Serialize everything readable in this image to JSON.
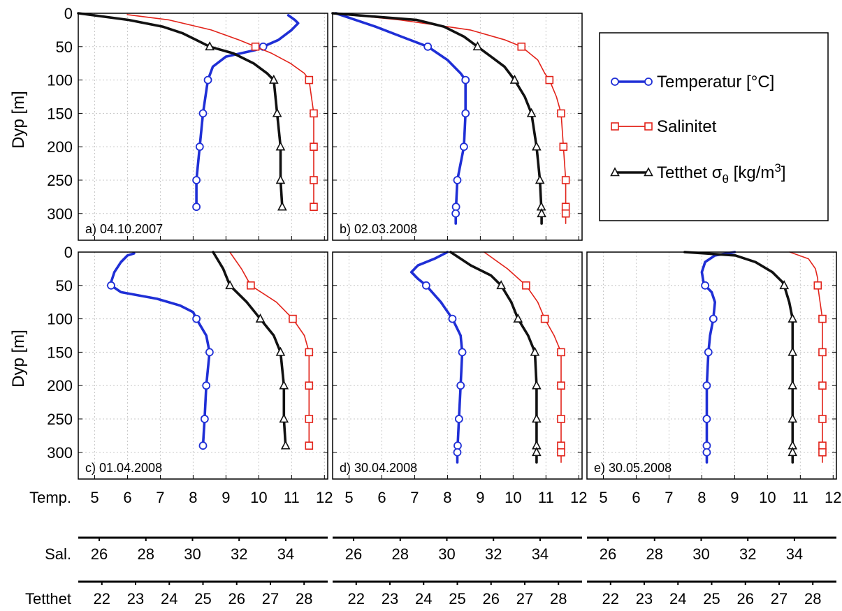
{
  "chart_data": {
    "type": "line",
    "ylabel": "Dyp [m]",
    "y_axis": {
      "ylim": [
        0,
        340
      ],
      "reversed": true,
      "ticks": [
        0,
        50,
        100,
        150,
        200,
        250,
        300
      ]
    },
    "x_axes": [
      {
        "label": "Temp.",
        "range": [
          4.5,
          12.1
        ],
        "ticks": [
          5,
          6,
          7,
          8,
          9,
          10,
          11,
          12
        ]
      },
      {
        "label": "Sal.",
        "range": [
          25.1,
          35.8
        ],
        "ticks": [
          26,
          28,
          30,
          32,
          34
        ]
      },
      {
        "label": "Tetthet",
        "range": [
          21.3,
          28.7
        ],
        "ticks": [
          22,
          23,
          24,
          25,
          26,
          27,
          28
        ]
      }
    ],
    "grid": true,
    "legend": {
      "position": "top-right",
      "entries": [
        {
          "name": "Temperatur [°C]",
          "color": "#1f2fd6",
          "marker": "circle"
        },
        {
          "name": "Salinitet",
          "color": "#e2231a",
          "marker": "square"
        },
        {
          "name": "Tetthet σθ [kg/m3]",
          "color": "#111111",
          "marker": "triangle"
        }
      ]
    },
    "panels": [
      {
        "label": "a) 04.10.2007",
        "temperature": {
          "depth": [
            3,
            10,
            15,
            25,
            40,
            55,
            65,
            80,
            100,
            150,
            200,
            250,
            290
          ],
          "values": [
            10.9,
            11.1,
            11.2,
            11.0,
            10.6,
            9.9,
            9.0,
            8.6,
            8.45,
            8.3,
            8.2,
            8.1,
            8.1
          ]
        },
        "salinity": {
          "depth": [
            2,
            10,
            25,
            40,
            50,
            60,
            75,
            90,
            100,
            150,
            200,
            250,
            290
          ],
          "values": [
            27.2,
            29.0,
            30.8,
            32.0,
            32.7,
            33.4,
            34.2,
            34.8,
            35.0,
            35.2,
            35.2,
            35.2,
            35.2
          ]
        },
        "density": {
          "depth": [
            0,
            10,
            20,
            30,
            40,
            50,
            60,
            75,
            90,
            100,
            150,
            200,
            250,
            290
          ],
          "values": [
            21.3,
            22.8,
            23.8,
            24.4,
            24.8,
            25.2,
            25.9,
            26.5,
            26.9,
            27.1,
            27.2,
            27.3,
            27.3,
            27.35
          ]
        }
      },
      {
        "label": "b) 02.03.2008",
        "temperature": {
          "depth": [
            0,
            10,
            20,
            35,
            50,
            70,
            90,
            100,
            150,
            200,
            250,
            300,
            315
          ],
          "values": [
            4.6,
            5.2,
            5.8,
            6.6,
            7.4,
            8.0,
            8.4,
            8.55,
            8.55,
            8.5,
            8.3,
            8.25,
            8.25
          ]
        },
        "salinity": {
          "depth": [
            0,
            10,
            25,
            40,
            50,
            70,
            90,
            100,
            125,
            150,
            200,
            250,
            300,
            315
          ],
          "values": [
            25.2,
            28.0,
            31.0,
            32.5,
            33.2,
            33.9,
            34.2,
            34.4,
            34.7,
            34.9,
            35.0,
            35.1,
            35.1,
            35.1
          ]
        },
        "density": {
          "depth": [
            0,
            10,
            20,
            35,
            50,
            65,
            80,
            100,
            125,
            150,
            200,
            250,
            300,
            315
          ],
          "values": [
            21.3,
            23.8,
            24.6,
            25.2,
            25.6,
            26.0,
            26.4,
            26.7,
            27.0,
            27.2,
            27.35,
            27.45,
            27.5,
            27.5
          ]
        }
      },
      {
        "label": "c) 01.04.2008",
        "temperature": {
          "depth": [
            2,
            5,
            15,
            30,
            45,
            50,
            60,
            70,
            80,
            90,
            100,
            125,
            150,
            200,
            250,
            290
          ],
          "values": [
            6.2,
            6.0,
            5.8,
            5.6,
            5.5,
            5.5,
            5.8,
            6.9,
            7.6,
            8.0,
            8.1,
            8.4,
            8.5,
            8.4,
            8.35,
            8.3
          ]
        },
        "salinity": {
          "depth": [
            0,
            25,
            50,
            75,
            100,
            125,
            150,
            200,
            250,
            290
          ],
          "values": [
            31.6,
            32.1,
            32.5,
            33.6,
            34.3,
            34.8,
            35.0,
            35.0,
            35.0,
            35.0
          ]
        },
        "density": {
          "depth": [
            0,
            25,
            50,
            75,
            100,
            125,
            150,
            200,
            250,
            290
          ],
          "values": [
            25.3,
            25.6,
            25.8,
            26.3,
            26.7,
            27.1,
            27.3,
            27.4,
            27.4,
            27.45
          ]
        }
      },
      {
        "label": "d) 30.04.2008",
        "temperature": {
          "depth": [
            0,
            10,
            20,
            30,
            40,
            50,
            75,
            100,
            125,
            150,
            200,
            250,
            300,
            315
          ],
          "values": [
            8.0,
            7.6,
            7.1,
            6.9,
            7.1,
            7.35,
            7.8,
            8.15,
            8.4,
            8.45,
            8.4,
            8.35,
            8.3,
            8.3
          ]
        },
        "salinity": {
          "depth": [
            0,
            25,
            50,
            75,
            100,
            125,
            150,
            200,
            250,
            300,
            315
          ],
          "values": [
            31.6,
            32.6,
            33.4,
            33.9,
            34.2,
            34.6,
            34.9,
            34.9,
            34.9,
            34.9,
            34.9
          ]
        },
        "density": {
          "depth": [
            0,
            20,
            35,
            50,
            75,
            100,
            125,
            150,
            200,
            250,
            300,
            315
          ],
          "values": [
            24.8,
            25.4,
            26.0,
            26.3,
            26.6,
            26.8,
            27.1,
            27.3,
            27.35,
            27.35,
            27.35,
            27.35
          ]
        }
      },
      {
        "label": "e) 30.05.2008",
        "temperature": {
          "depth": [
            0,
            5,
            15,
            30,
            45,
            50,
            60,
            75,
            100,
            125,
            150,
            200,
            250,
            300,
            315
          ],
          "values": [
            9.0,
            8.4,
            8.1,
            8.0,
            8.05,
            8.1,
            8.3,
            8.4,
            8.35,
            8.25,
            8.2,
            8.15,
            8.15,
            8.15,
            8.15
          ]
        },
        "salinity": {
          "depth": [
            0,
            10,
            25,
            40,
            50,
            75,
            100,
            150,
            200,
            250,
            300,
            315
          ],
          "values": [
            33.8,
            34.6,
            34.9,
            35.0,
            35.0,
            35.1,
            35.2,
            35.2,
            35.2,
            35.2,
            35.2,
            35.2
          ]
        },
        "density": {
          "depth": [
            0,
            5,
            15,
            30,
            45,
            50,
            75,
            100,
            150,
            200,
            250,
            300,
            315
          ],
          "values": [
            24.2,
            25.7,
            26.3,
            26.8,
            27.1,
            27.15,
            27.3,
            27.4,
            27.4,
            27.4,
            27.4,
            27.4,
            27.4
          ]
        }
      }
    ]
  }
}
